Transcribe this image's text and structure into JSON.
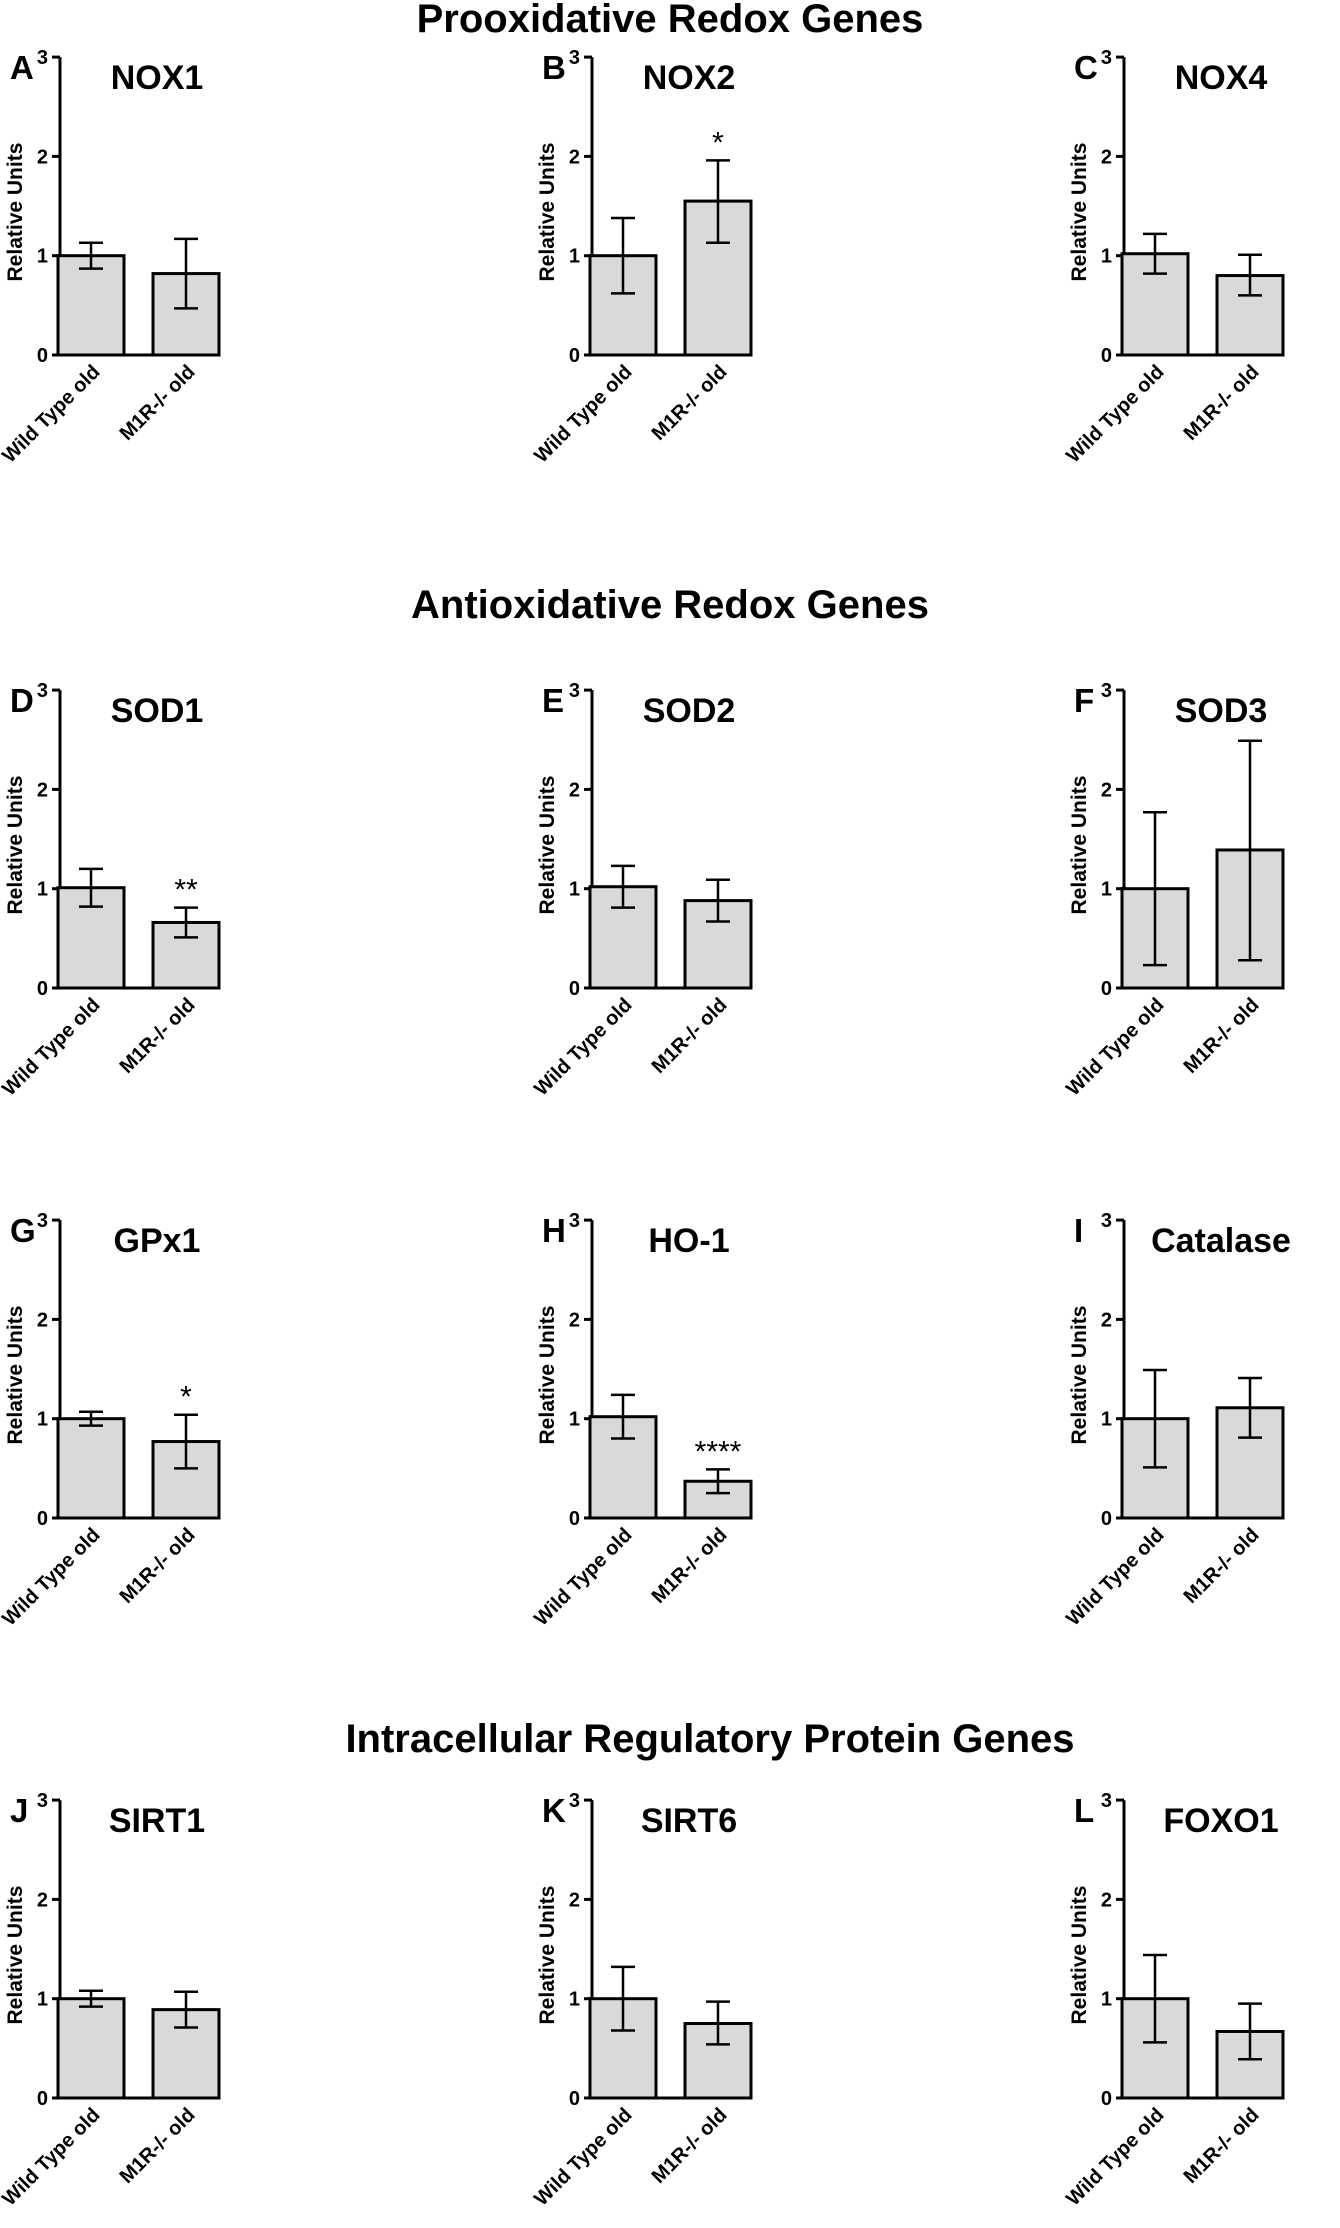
{
  "section_titles": [
    "Prooxidative Redox Genes",
    "Antioxidative Redox Genes",
    "Intracellular Regulatory Protein Genes"
  ],
  "style": {
    "bar_fill": "#d9d9d9",
    "stroke": "#000000"
  },
  "chart_data": [
    {
      "letter": "A",
      "type": "bar",
      "title": "NOX1",
      "ylabel": "Relative Units",
      "ylim": [
        0,
        3
      ],
      "yticks": [
        "0",
        "1",
        "2",
        "3"
      ],
      "categories": [
        "Wild Type old",
        "M1R-/- old"
      ],
      "values": [
        1.0,
        0.82
      ],
      "err_low": [
        0.87,
        0.47
      ],
      "err_high": [
        1.13,
        1.17
      ],
      "significance": [
        "",
        ""
      ]
    },
    {
      "letter": "B",
      "type": "bar",
      "title": "NOX2",
      "ylabel": "Relative Units",
      "ylim": [
        0,
        3
      ],
      "yticks": [
        "0",
        "1",
        "2",
        "3"
      ],
      "categories": [
        "Wild Type old",
        "M1R-/- old"
      ],
      "values": [
        1.0,
        1.55
      ],
      "err_low": [
        0.62,
        1.13
      ],
      "err_high": [
        1.38,
        1.96
      ],
      "significance": [
        "",
        "*"
      ]
    },
    {
      "letter": "C",
      "type": "bar",
      "title": "NOX4",
      "ylabel": "Relative Units",
      "ylim": [
        0,
        3
      ],
      "yticks": [
        "0",
        "1",
        "2",
        "3"
      ],
      "categories": [
        "Wild Type old",
        "M1R-/- old"
      ],
      "values": [
        1.02,
        0.8
      ],
      "err_low": [
        0.82,
        0.6
      ],
      "err_high": [
        1.22,
        1.01
      ],
      "significance": [
        "",
        ""
      ]
    },
    {
      "letter": "D",
      "type": "bar",
      "title": "SOD1",
      "ylabel": "Relative Units",
      "ylim": [
        0,
        3
      ],
      "yticks": [
        "0",
        "1",
        "2",
        "3"
      ],
      "categories": [
        "Wild Type old",
        "M1R-/- old"
      ],
      "values": [
        1.01,
        0.66
      ],
      "err_low": [
        0.82,
        0.51
      ],
      "err_high": [
        1.2,
        0.81
      ],
      "significance": [
        "",
        "**"
      ]
    },
    {
      "letter": "E",
      "type": "bar",
      "title": "SOD2",
      "ylabel": "Relative Units",
      "ylim": [
        0,
        3
      ],
      "yticks": [
        "0",
        "1",
        "2",
        "3"
      ],
      "categories": [
        "Wild Type old",
        "M1R-/- old"
      ],
      "values": [
        1.02,
        0.88
      ],
      "err_low": [
        0.81,
        0.67
      ],
      "err_high": [
        1.23,
        1.09
      ],
      "significance": [
        "",
        ""
      ]
    },
    {
      "letter": "F",
      "type": "bar",
      "title": "SOD3",
      "ylabel": "Relative Units",
      "ylim": [
        0,
        3
      ],
      "yticks": [
        "0",
        "1",
        "2",
        "3"
      ],
      "categories": [
        "Wild Type old",
        "M1R-/- old"
      ],
      "values": [
        1.0,
        1.39
      ],
      "err_low": [
        0.23,
        0.28
      ],
      "err_high": [
        1.77,
        2.49
      ],
      "significance": [
        "",
        ""
      ]
    },
    {
      "letter": "G",
      "type": "bar",
      "title": "GPx1",
      "ylabel": "Relative Units",
      "ylim": [
        0,
        3
      ],
      "yticks": [
        "0",
        "1",
        "2",
        "3"
      ],
      "categories": [
        "Wild Type old",
        "M1R-/- old"
      ],
      "values": [
        1.0,
        0.77
      ],
      "err_low": [
        0.93,
        0.5
      ],
      "err_high": [
        1.07,
        1.04
      ],
      "significance": [
        "",
        "*"
      ]
    },
    {
      "letter": "H",
      "type": "bar",
      "title": "HO-1",
      "ylabel": "Relative Units",
      "ylim": [
        0,
        3
      ],
      "yticks": [
        "0",
        "1",
        "2",
        "3"
      ],
      "categories": [
        "Wild Type old",
        "M1R-/- old"
      ],
      "values": [
        1.02,
        0.37
      ],
      "err_low": [
        0.8,
        0.25
      ],
      "err_high": [
        1.24,
        0.49
      ],
      "significance": [
        "",
        "****"
      ]
    },
    {
      "letter": "I",
      "type": "bar",
      "title": "Catalase",
      "ylabel": "Relative Units",
      "ylim": [
        0,
        3
      ],
      "yticks": [
        "0",
        "1",
        "2",
        "3"
      ],
      "categories": [
        "Wild Type old",
        "M1R-/- old"
      ],
      "values": [
        1.0,
        1.11
      ],
      "err_low": [
        0.51,
        0.81
      ],
      "err_high": [
        1.49,
        1.41
      ],
      "significance": [
        "",
        ""
      ]
    },
    {
      "letter": "J",
      "type": "bar",
      "title": "SIRT1",
      "ylabel": "Relative Units",
      "ylim": [
        0,
        3
      ],
      "yticks": [
        "0",
        "1",
        "2",
        "3"
      ],
      "categories": [
        "Wild Type old",
        "M1R-/- old"
      ],
      "values": [
        1.0,
        0.89
      ],
      "err_low": [
        0.92,
        0.71
      ],
      "err_high": [
        1.08,
        1.07
      ],
      "significance": [
        "",
        ""
      ]
    },
    {
      "letter": "K",
      "type": "bar",
      "title": "SIRT6",
      "ylabel": "Relative Units",
      "ylim": [
        0,
        3
      ],
      "yticks": [
        "0",
        "1",
        "2",
        "3"
      ],
      "categories": [
        "Wild Type old",
        "M1R-/- old"
      ],
      "values": [
        1.0,
        0.75
      ],
      "err_low": [
        0.68,
        0.54
      ],
      "err_high": [
        1.32,
        0.97
      ],
      "significance": [
        "",
        ""
      ]
    },
    {
      "letter": "L",
      "type": "bar",
      "title": "FOXO1",
      "ylabel": "Relative Units",
      "ylim": [
        0,
        3
      ],
      "yticks": [
        "0",
        "1",
        "2",
        "3"
      ],
      "categories": [
        "Wild Type old",
        "M1R-/- old"
      ],
      "values": [
        1.0,
        0.67
      ],
      "err_low": [
        0.56,
        0.39
      ],
      "err_high": [
        1.44,
        0.95
      ],
      "significance": [
        "",
        ""
      ]
    }
  ]
}
